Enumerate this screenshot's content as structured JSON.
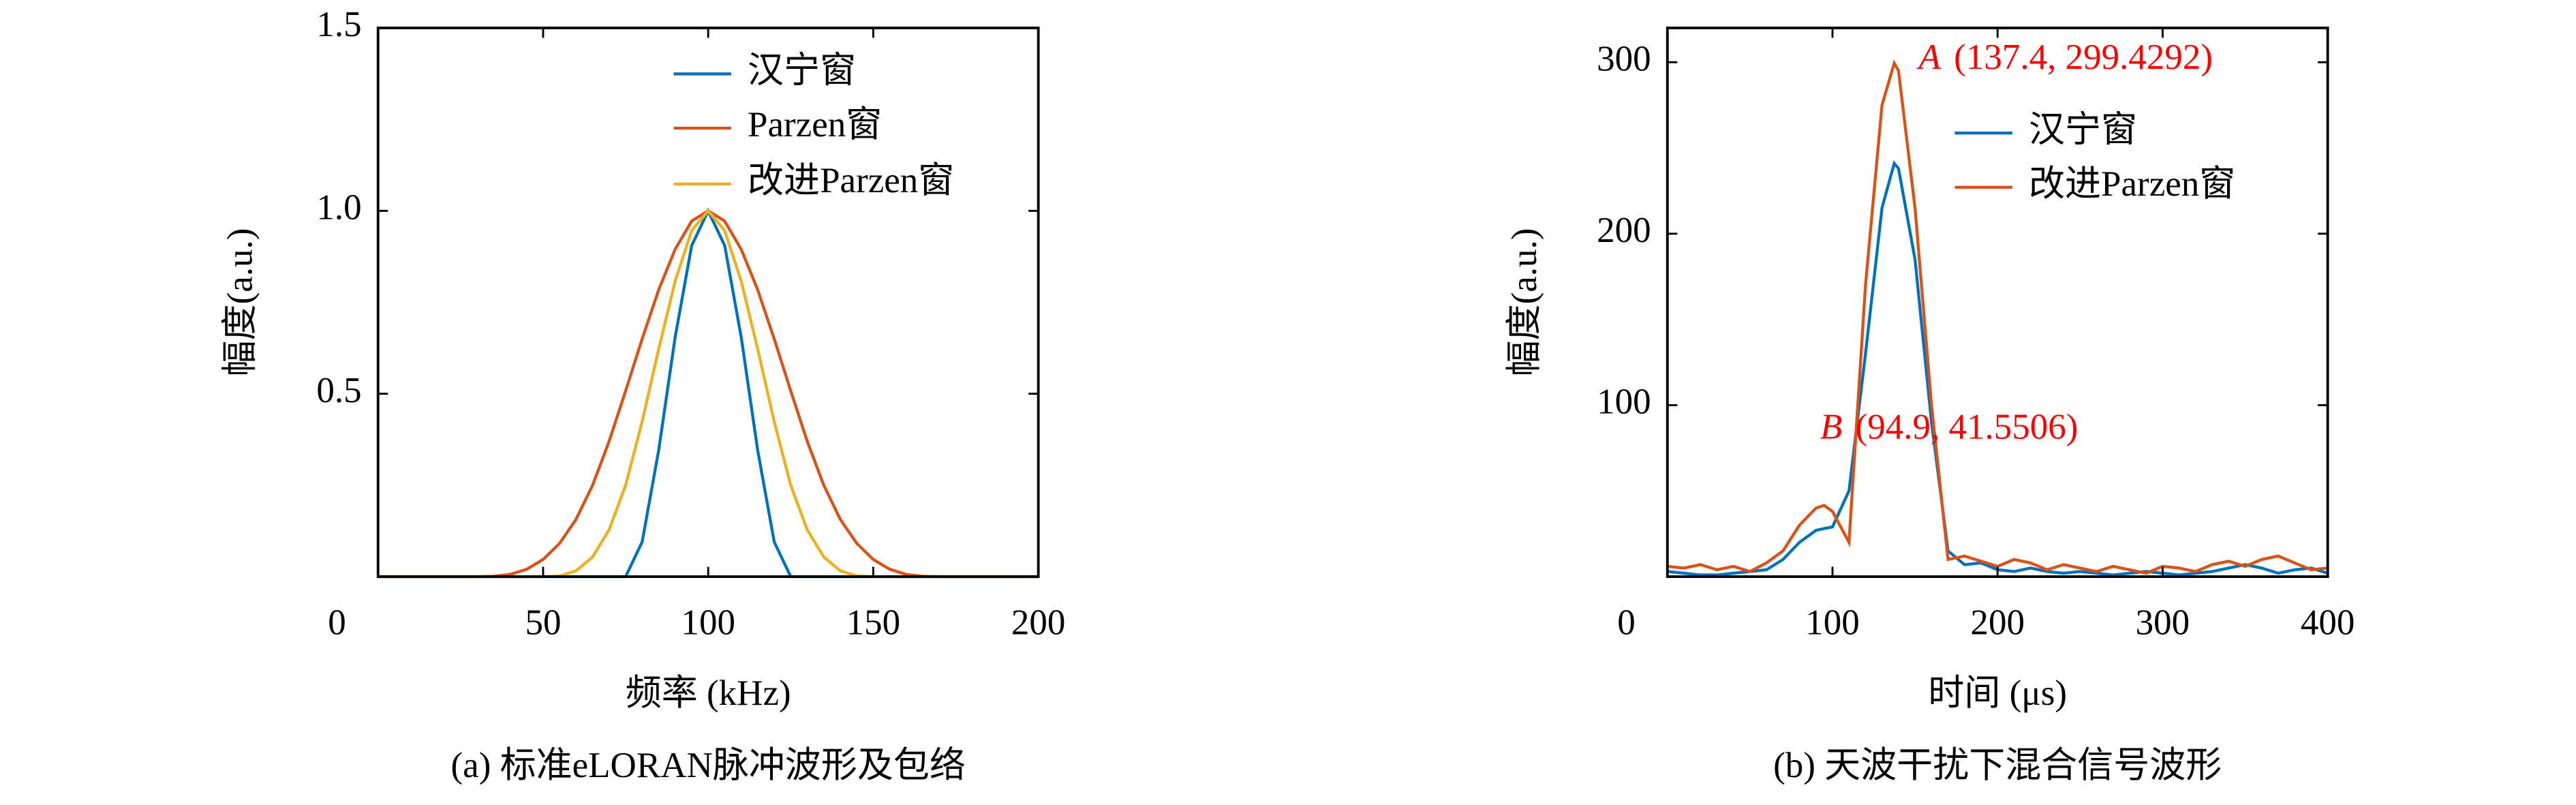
{
  "chart_data": [
    {
      "type": "line",
      "caption": "(a) 标准eLORAN脉冲波形及包络",
      "xlabel": "频率 (kHz)",
      "ylabel": "幅度(a.u.)",
      "xlim": [
        0,
        200
      ],
      "ylim": [
        0,
        1.5
      ],
      "xticks": [
        0,
        50,
        100,
        150,
        200
      ],
      "yticks": [
        0.5,
        {
          "value": 1,
          "label": "1.0"
        },
        1.5
      ],
      "legend": "upper right",
      "x": [
        0,
        5,
        10,
        15,
        20,
        25,
        30,
        35,
        40,
        45,
        50,
        55,
        60,
        65,
        70,
        75,
        80,
        85,
        90,
        95,
        100,
        105,
        110,
        115,
        120,
        125,
        130,
        135,
        140,
        145,
        150,
        155,
        160,
        165,
        170,
        175,
        180,
        185,
        190,
        195,
        200
      ],
      "series": [
        {
          "name": "汉宁窗",
          "color": "#0072bd",
          "values": [
            0,
            0,
            0,
            0,
            0,
            0,
            0,
            0,
            0,
            0,
            0,
            0,
            0,
            0,
            0,
            0,
            0.095,
            0.345,
            0.655,
            0.905,
            1,
            0.905,
            0.655,
            0.345,
            0.095,
            0,
            0,
            0,
            0,
            0,
            0,
            0,
            0,
            0,
            0,
            0,
            0,
            0,
            0,
            0,
            0
          ]
        },
        {
          "name": "Parzen窗",
          "color": "#d95319",
          "values": [
            0,
            0,
            0,
            0,
            0,
            0,
            0,
            0.001,
            0.006,
            0.02,
            0.047,
            0.091,
            0.157,
            0.25,
            0.37,
            0.508,
            0.65,
            0.784,
            0.895,
            0.972,
            1,
            0.972,
            0.895,
            0.784,
            0.65,
            0.508,
            0.37,
            0.25,
            0.157,
            0.091,
            0.047,
            0.02,
            0.006,
            0.001,
            0,
            0,
            0,
            0,
            0,
            0,
            0
          ]
        },
        {
          "name": "改进Parzen窗",
          "color": "#edb120",
          "values": [
            0,
            0,
            0,
            0,
            0,
            0,
            0,
            0,
            0,
            0,
            0,
            0.002,
            0.016,
            0.054,
            0.128,
            0.25,
            0.424,
            0.622,
            0.808,
            0.946,
            1,
            0.946,
            0.808,
            0.622,
            0.424,
            0.25,
            0.128,
            0.054,
            0.016,
            0.002,
            0,
            0,
            0,
            0,
            0,
            0,
            0,
            0,
            0,
            0,
            0
          ]
        }
      ]
    },
    {
      "type": "line",
      "caption": "(b) 天波干扰下混合信号波形",
      "xlabel": "时间 (μs)",
      "ylabel": "幅度(a.u.)",
      "xlim": [
        0,
        400
      ],
      "ylim": [
        0,
        320
      ],
      "xticks": [
        0,
        100,
        200,
        300,
        400
      ],
      "yticks": [
        100,
        200,
        300
      ],
      "legend": "upper right",
      "x": [
        0,
        10,
        20,
        30,
        40,
        50,
        60,
        70,
        80,
        90,
        94.9,
        100,
        110,
        120,
        130,
        137.4,
        140,
        150,
        160,
        170,
        180,
        190,
        200,
        210,
        220,
        230,
        240,
        250,
        260,
        270,
        280,
        290,
        300,
        310,
        320,
        330,
        340,
        350,
        360,
        370,
        380,
        390,
        400
      ],
      "series": [
        {
          "name": "汉宁窗",
          "color": "#0072bd",
          "values": [
            3,
            2,
            1,
            1,
            2,
            3,
            4,
            10,
            20,
            27,
            28,
            29,
            50,
            130,
            215,
            241,
            238,
            185,
            90,
            15,
            7,
            8,
            4,
            3,
            5,
            3,
            2,
            3,
            2,
            1,
            2,
            3,
            2,
            1,
            2,
            3,
            5,
            7,
            5,
            2,
            4,
            5,
            2
          ]
        },
        {
          "name": "改进Parzen窗",
          "color": "#d95319",
          "values": [
            6,
            5,
            7,
            4,
            6,
            3,
            8,
            15,
            30,
            40,
            41.5506,
            38,
            20,
            170,
            275,
            299.4292,
            295,
            215,
            100,
            10,
            12,
            9,
            6,
            10,
            8,
            4,
            7,
            5,
            3,
            6,
            4,
            2,
            6,
            5,
            3,
            7,
            9,
            6,
            10,
            12,
            8,
            4,
            5
          ]
        }
      ],
      "annotations": [
        {
          "letter": "A",
          "text": "(137.4, 299.4292)"
        },
        {
          "letter": "B",
          "text": "(94.9, 41.5506)"
        }
      ]
    }
  ]
}
